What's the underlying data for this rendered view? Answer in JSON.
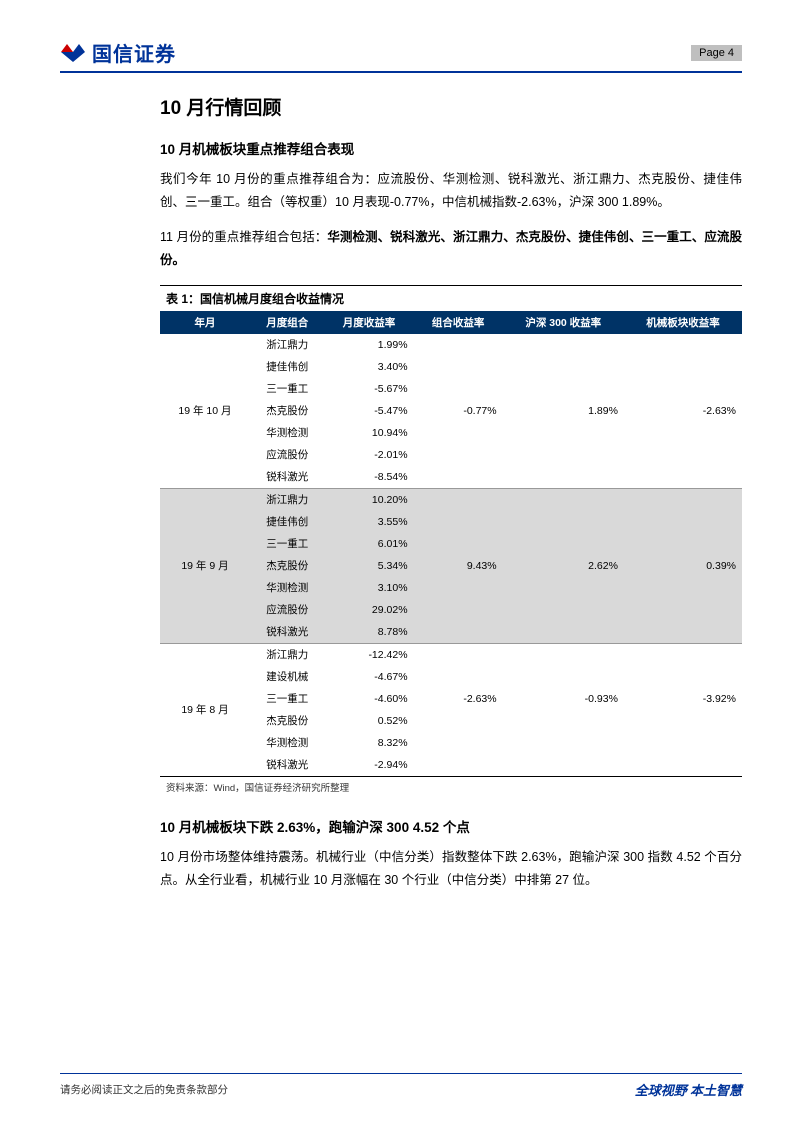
{
  "header": {
    "brand": "国信证券",
    "page_label": "Page   4"
  },
  "section": {
    "h1": "10 月行情回顾",
    "h2a": "10 月机械板块重点推荐组合表现",
    "p1": "我们今年 10 月份的重点推荐组合为：应流股份、华测检测、锐科激光、浙江鼎力、杰克股份、捷佳伟创、三一重工。组合（等权重）10 月表现-0.77%，中信机械指数-2.63%，沪深 300 1.89%。",
    "p2_a": "11 月份的重点推荐组合包括：",
    "p2_b": "华测检测、锐科激光、浙江鼎力、杰克股份、捷佳伟创、三一重工、应流股份。",
    "table_caption": "表  1：国信机械月度组合收益情况",
    "table_source": "资料来源：Wind，国信证券经济研究所整理",
    "h2b": "10 月机械板块下跌 2.63%，跑输沪深 300 4.52 个点",
    "p3": "10 月份市场整体维持震荡。机械行业（中信分类）指数整体下跌 2.63%，跑输沪深 300 指数 4.52 个百分点。从全行业看，机械行业 10 月涨幅在 30 个行业（中信分类）中排第 27 位。"
  },
  "table": {
    "columns": [
      "年月",
      "月度组合",
      "月度收益率",
      "组合收益率",
      "沪深 300 收益率",
      "机械板块收益率"
    ],
    "groups": [
      {
        "period": "19 年 10 月",
        "shaded": false,
        "agg": {
          "combo": "-0.77%",
          "hs300": "1.89%",
          "mach": "-2.63%"
        },
        "rows": [
          {
            "name": "浙江鼎力",
            "ret": "1.99%"
          },
          {
            "name": "捷佳伟创",
            "ret": "3.40%"
          },
          {
            "name": "三一重工",
            "ret": "-5.67%"
          },
          {
            "name": "杰克股份",
            "ret": "-5.47%"
          },
          {
            "name": "华测检测",
            "ret": "10.94%"
          },
          {
            "name": "应流股份",
            "ret": "-2.01%"
          },
          {
            "name": "锐科激光",
            "ret": "-8.54%"
          }
        ]
      },
      {
        "period": "19 年 9 月",
        "shaded": true,
        "agg": {
          "combo": "9.43%",
          "hs300": "2.62%",
          "mach": "0.39%"
        },
        "rows": [
          {
            "name": "浙江鼎力",
            "ret": "10.20%"
          },
          {
            "name": "捷佳伟创",
            "ret": "3.55%"
          },
          {
            "name": "三一重工",
            "ret": "6.01%"
          },
          {
            "name": "杰克股份",
            "ret": "5.34%"
          },
          {
            "name": "华测检测",
            "ret": "3.10%"
          },
          {
            "name": "应流股份",
            "ret": "29.02%"
          },
          {
            "name": "锐科激光",
            "ret": "8.78%"
          }
        ]
      },
      {
        "period": "19 年 8 月",
        "shaded": false,
        "agg": {
          "combo": "-2.63%",
          "hs300": "-0.93%",
          "mach": "-3.92%"
        },
        "rows": [
          {
            "name": "浙江鼎力",
            "ret": "-12.42%"
          },
          {
            "name": "建设机械",
            "ret": "-4.67%"
          },
          {
            "name": "三一重工",
            "ret": "-4.60%"
          },
          {
            "name": "杰克股份",
            "ret": "0.52%"
          },
          {
            "name": "华测检测",
            "ret": "8.32%"
          },
          {
            "name": "锐科激光",
            "ret": "-2.94%"
          }
        ]
      }
    ]
  },
  "footer": {
    "left": "请务必阅读正文之后的免责条款部分",
    "right": "全球视野  本土智慧"
  },
  "colors": {
    "brand_blue": "#003399",
    "table_header_bg": "#003366",
    "shaded_row": "#d9d9d9",
    "page_badge": "#bfbfbf"
  }
}
